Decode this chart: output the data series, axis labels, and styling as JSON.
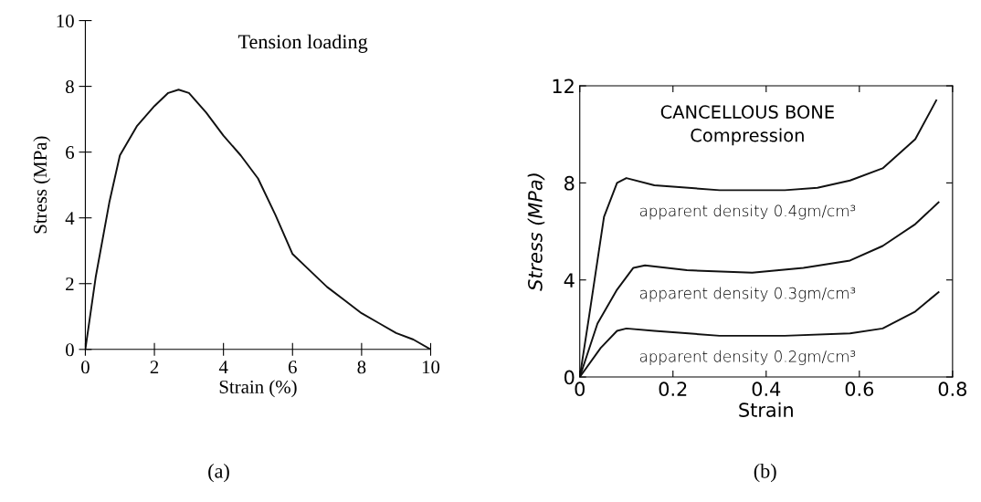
{
  "chart_data": [
    {
      "type": "line",
      "title": "Tension loading",
      "xlabel": "Strain (%)",
      "ylabel": "Stress (MPa)",
      "x": [
        0,
        0.3,
        0.7,
        1,
        1.5,
        2,
        2.4,
        2.7,
        3,
        3.5,
        4,
        4.5,
        5,
        5.5,
        6,
        6.5,
        7,
        7.5,
        8,
        8.5,
        9,
        9.5,
        10
      ],
      "series": [
        {
          "color": "#111111",
          "values": [
            0,
            2.2,
            4.5,
            5.9,
            6.8,
            7.4,
            7.8,
            7.9,
            7.8,
            7.2,
            6.5,
            5.9,
            5.2,
            4.1,
            2.9,
            2.4,
            1.9,
            1.5,
            1.1,
            0.8,
            0.5,
            0.3,
            0
          ]
        }
      ],
      "xlim": [
        0,
        10
      ],
      "ylim": [
        0,
        10
      ],
      "xticks": [
        0,
        2,
        4,
        6,
        8,
        10
      ],
      "yticks": [
        0,
        2,
        4,
        6,
        8,
        10
      ],
      "grid": false,
      "legend": false,
      "annotations": [
        "(a)"
      ]
    },
    {
      "type": "line",
      "title": "CANCELLOUS BONE",
      "subtitle": "Compression",
      "xlabel": "Strain",
      "ylabel": "Stress (MPa)",
      "series": [
        {
          "name": "apparent density 0.4gm/cm³",
          "color": "#111111",
          "x": [
            0,
            0.02,
            0.052,
            0.08,
            0.1,
            0.16,
            0.3,
            0.44,
            0.51,
            0.58,
            0.65,
            0.72,
            0.765
          ],
          "values": [
            0,
            2.5,
            6.6,
            8.0,
            8.2,
            7.9,
            7.7,
            7.7,
            7.8,
            8.1,
            8.6,
            9.8,
            11.4
          ]
        },
        {
          "name": "apparent density 0.3gm/cm³",
          "color": "#111111",
          "x": [
            0,
            0.038,
            0.08,
            0.115,
            0.14,
            0.23,
            0.37,
            0.48,
            0.58,
            0.65,
            0.72,
            0.77
          ],
          "values": [
            0,
            2.2,
            3.6,
            4.5,
            4.6,
            4.4,
            4.3,
            4.5,
            4.8,
            5.4,
            6.3,
            7.2
          ]
        },
        {
          "name": "apparent density 0.2gm/cm³",
          "color": "#111111",
          "x": [
            0,
            0.045,
            0.08,
            0.1,
            0.16,
            0.3,
            0.44,
            0.58,
            0.65,
            0.72,
            0.77
          ],
          "values": [
            0,
            1.2,
            1.9,
            2.0,
            1.9,
            1.7,
            1.7,
            1.8,
            2.0,
            2.7,
            3.5
          ]
        }
      ],
      "xlim": [
        0,
        0.8
      ],
      "ylim": [
        0,
        12
      ],
      "xticks": [
        0,
        0.2,
        0.4,
        0.6,
        0.8
      ],
      "yticks": [
        0,
        4,
        8,
        12
      ],
      "grid": false,
      "legend": false,
      "annotations": [
        "(b)"
      ]
    }
  ]
}
